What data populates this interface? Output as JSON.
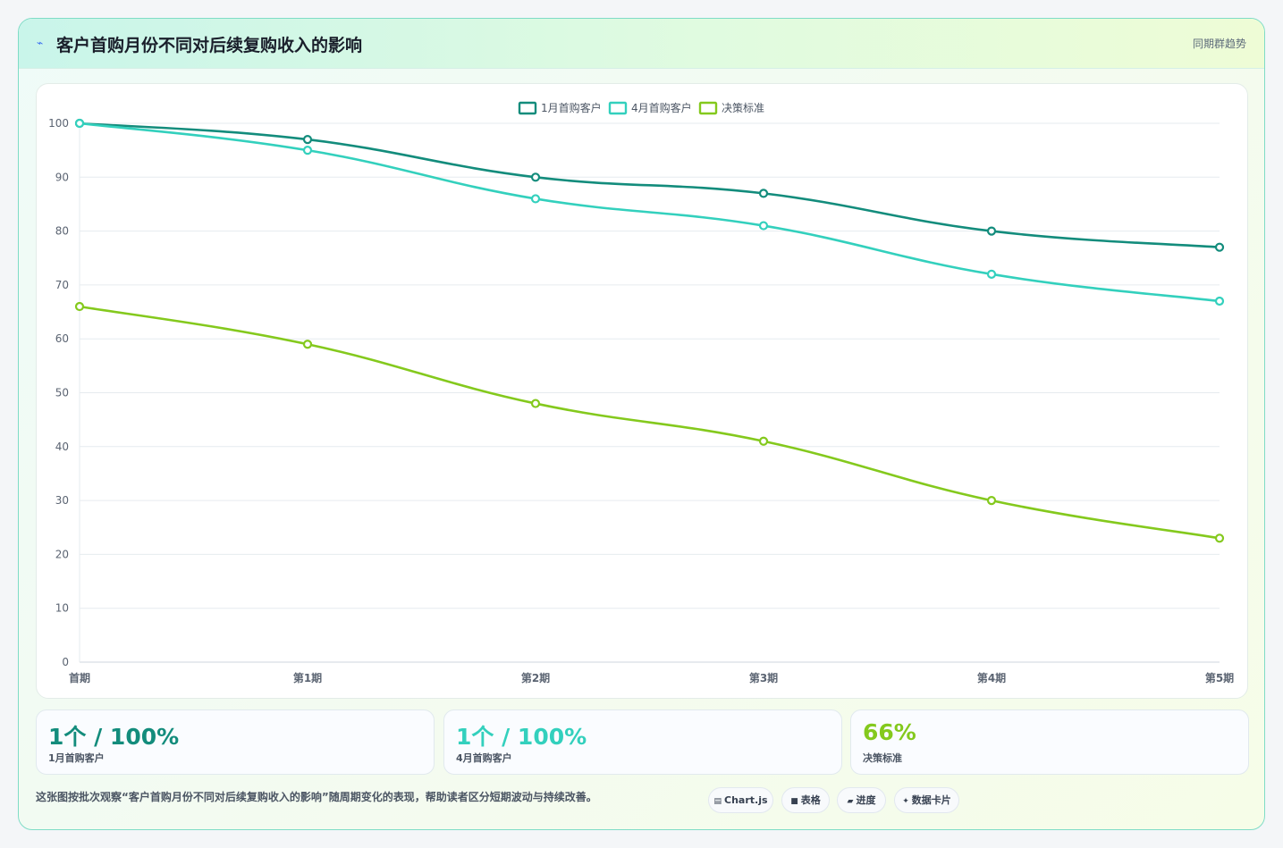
{
  "header": {
    "icon": "chart-trend-icon",
    "title": "客户首购月份不同对后续复购收入的影响",
    "tag": "同期群趋势"
  },
  "chart_data": {
    "type": "line",
    "categories": [
      "首期",
      "第1期",
      "第2期",
      "第3期",
      "第4期",
      "第5期"
    ],
    "series": [
      {
        "name": "1月首购客户",
        "color": "#138c7c",
        "values": [
          100,
          97,
          90,
          87,
          80,
          77
        ]
      },
      {
        "name": "4月首购客户",
        "color": "#33d0bd",
        "values": [
          100,
          95,
          86,
          81,
          72,
          67
        ]
      },
      {
        "name": "决策标准",
        "color": "#84c91d",
        "values": [
          66,
          59,
          48,
          41,
          30,
          23
        ]
      }
    ],
    "ylim": [
      0,
      100
    ],
    "yticks": [
      0,
      10,
      20,
      30,
      40,
      50,
      60,
      70,
      80,
      90,
      100
    ],
    "grid": true,
    "legend": "top-center"
  },
  "stats": [
    {
      "value": "1个 / 100%",
      "label": "1月首购客户",
      "color": "#138c7c"
    },
    {
      "value": "1个 / 100%",
      "label": "4月首购客户",
      "color": "#33d0bd"
    },
    {
      "value": "66%",
      "label": "决策标准",
      "color": "#84c91d"
    }
  ],
  "footer": {
    "description": "这张图按批次观察“客户首购月份不同对后续复购收入的影响”随周期变化的表现，帮助读者区分短期波动与持续改善。",
    "pills": [
      {
        "icon": "chart-icon",
        "glyph": "▤",
        "label": "Chart.js"
      },
      {
        "icon": "table-icon",
        "glyph": "■",
        "label": "表格"
      },
      {
        "icon": "progress-icon",
        "glyph": "▰",
        "label": "进度"
      },
      {
        "icon": "sparkle-icon",
        "glyph": "✦",
        "label": "数据卡片"
      }
    ]
  }
}
